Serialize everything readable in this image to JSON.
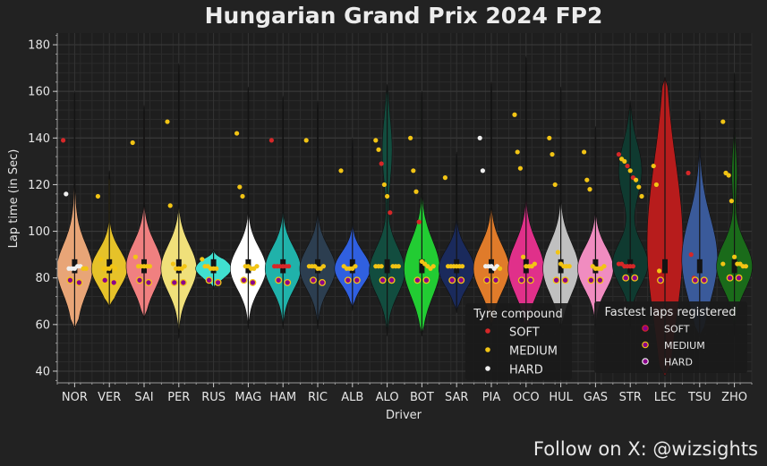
{
  "chart_data": {
    "type": "violin",
    "title": "Hungarian Grand Prix 2024 FP2",
    "xlabel": "Driver",
    "ylabel": "Lap time (in Sec)",
    "ylim": [
      35,
      185
    ],
    "yticks": [
      "40",
      "60",
      "80",
      "100",
      "120",
      "140",
      "160",
      "180"
    ],
    "grid": true,
    "background": "#1e1e1e",
    "compound_colors": {
      "SOFT": "#d62728",
      "MEDIUM": "#f2c414",
      "HARD": "#f0f0f0"
    },
    "fastest_marker_color": "#8b008b",
    "legend_compound": {
      "title": "Tyre compound",
      "placement": "lower-right",
      "items": [
        {
          "label": "SOFT",
          "compound": "SOFT"
        },
        {
          "label": "MEDIUM",
          "compound": "MEDIUM"
        },
        {
          "label": "HARD",
          "compound": "HARD"
        }
      ]
    },
    "legend_fastest": {
      "title": "Fastest laps registered",
      "placement": "lower-right",
      "items": [
        {
          "label": "SOFT",
          "compound": "SOFT"
        },
        {
          "label": "MEDIUM",
          "compound": "MEDIUM"
        },
        {
          "label": "HARD",
          "compound": "HARD"
        }
      ]
    },
    "drivers": [
      {
        "code": "NOR",
        "color": "#e8a577",
        "range": [
          58,
          160
        ],
        "modes": [
          {
            "c": 84,
            "w": 1.0,
            "s": 10
          },
          {
            "c": 80,
            "w": 0.3,
            "s": 20
          }
        ],
        "points": [
          [
            139,
            "SOFT"
          ],
          [
            116,
            "HARD"
          ],
          [
            84,
            "HARD"
          ],
          [
            84,
            "HARD"
          ],
          [
            84,
            "HARD"
          ],
          [
            85,
            "HARD"
          ],
          [
            85,
            "HARD"
          ],
          [
            84,
            "MEDIUM"
          ],
          [
            84,
            "MEDIUM"
          ]
        ],
        "fastest": [
          [
            79,
            "MEDIUM"
          ],
          [
            78,
            "MEDIUM"
          ]
        ]
      },
      {
        "code": "VER",
        "color": "#e6c229",
        "range": [
          67,
          126
        ],
        "modes": [
          {
            "c": 84,
            "w": 0.65,
            "s": 8
          }
        ],
        "points": [
          [
            115,
            "MEDIUM"
          ],
          [
            88,
            "MEDIUM"
          ],
          [
            84,
            "MEDIUM"
          ],
          [
            84,
            "MEDIUM"
          ],
          [
            84,
            "MEDIUM"
          ],
          [
            85,
            "MEDIUM"
          ],
          [
            84,
            "MEDIUM"
          ]
        ],
        "fastest": [
          [
            79,
            "MEDIUM"
          ],
          [
            78,
            "MEDIUM"
          ]
        ]
      },
      {
        "code": "SAI",
        "color": "#f08080",
        "range": [
          62,
          154
        ],
        "modes": [
          {
            "c": 85,
            "w": 0.85,
            "s": 10
          }
        ],
        "points": [
          [
            138,
            "MEDIUM"
          ],
          [
            89,
            "MEDIUM"
          ],
          [
            85,
            "MEDIUM"
          ],
          [
            85,
            "MEDIUM"
          ],
          [
            85,
            "MEDIUM"
          ],
          [
            85,
            "MEDIUM"
          ],
          [
            85,
            "MEDIUM"
          ]
        ],
        "fastest": [
          [
            79,
            "MEDIUM"
          ],
          [
            78,
            "MEDIUM"
          ]
        ]
      },
      {
        "code": "PER",
        "color": "#f0e07a",
        "range": [
          54,
          172
        ],
        "modes": [
          {
            "c": 84,
            "w": 1.0,
            "s": 10
          }
        ],
        "points": [
          [
            147,
            "MEDIUM"
          ],
          [
            111,
            "MEDIUM"
          ],
          [
            86,
            "MEDIUM"
          ],
          [
            84,
            "MEDIUM"
          ],
          [
            84,
            "MEDIUM"
          ],
          [
            84,
            "MEDIUM"
          ],
          [
            85,
            "MEDIUM"
          ]
        ],
        "fastest": [
          [
            78,
            "MEDIUM"
          ],
          [
            78,
            "MEDIUM"
          ]
        ]
      },
      {
        "code": "RUS",
        "color": "#40e0d0",
        "range": [
          75,
          92
        ],
        "modes": [
          {
            "c": 84,
            "w": 0.55,
            "s": 4
          }
        ],
        "points": [
          [
            88,
            "MEDIUM"
          ],
          [
            85,
            "MEDIUM"
          ],
          [
            85,
            "MEDIUM"
          ],
          [
            84,
            "MEDIUM"
          ],
          [
            84,
            "MEDIUM"
          ],
          [
            84,
            "MEDIUM"
          ]
        ],
        "fastest": [
          [
            79,
            "MEDIUM"
          ],
          [
            78,
            "MEDIUM"
          ]
        ]
      },
      {
        "code": "MAG",
        "color": "#ffffff",
        "range": [
          58,
          162
        ],
        "modes": [
          {
            "c": 84,
            "w": 1.0,
            "s": 9
          }
        ],
        "points": [
          [
            142,
            "MEDIUM"
          ],
          [
            119,
            "MEDIUM"
          ],
          [
            115,
            "MEDIUM"
          ],
          [
            85,
            "MEDIUM"
          ],
          [
            85,
            "MEDIUM"
          ],
          [
            84,
            "MEDIUM"
          ],
          [
            84,
            "MEDIUM"
          ],
          [
            85,
            "MEDIUM"
          ]
        ],
        "fastest": [
          [
            79,
            "MEDIUM"
          ],
          [
            78,
            "MEDIUM"
          ]
        ]
      },
      {
        "code": "HAM",
        "color": "#20b2aa",
        "range": [
          58,
          158
        ],
        "modes": [
          {
            "c": 84,
            "w": 0.95,
            "s": 9
          }
        ],
        "points": [
          [
            139,
            "SOFT"
          ],
          [
            85,
            "SOFT"
          ],
          [
            85,
            "SOFT"
          ],
          [
            85,
            "SOFT"
          ],
          [
            85,
            "SOFT"
          ],
          [
            85,
            "SOFT"
          ],
          [
            85,
            "SOFT"
          ]
        ],
        "fastest": [
          [
            79,
            "MEDIUM"
          ],
          [
            78,
            "MEDIUM"
          ]
        ]
      },
      {
        "code": "RIC",
        "color": "#2c3e50",
        "range": [
          58,
          156
        ],
        "modes": [
          {
            "c": 84,
            "w": 0.9,
            "s": 9
          }
        ],
        "points": [
          [
            139,
            "MEDIUM"
          ],
          [
            85,
            "MEDIUM"
          ],
          [
            85,
            "MEDIUM"
          ],
          [
            85,
            "MEDIUM"
          ],
          [
            84,
            "MEDIUM"
          ],
          [
            84,
            "MEDIUM"
          ],
          [
            85,
            "MEDIUM"
          ]
        ],
        "fastest": [
          [
            79,
            "MEDIUM"
          ],
          [
            78,
            "MEDIUM"
          ]
        ]
      },
      {
        "code": "ALB",
        "color": "#3060e0",
        "range": [
          66,
          140
        ],
        "modes": [
          {
            "c": 84,
            "w": 0.9,
            "s": 7
          }
        ],
        "points": [
          [
            126,
            "MEDIUM"
          ],
          [
            85,
            "MEDIUM"
          ],
          [
            84,
            "MEDIUM"
          ],
          [
            84,
            "MEDIUM"
          ],
          [
            84,
            "MEDIUM"
          ],
          [
            85,
            "MEDIUM"
          ]
        ],
        "fastest": [
          [
            79,
            "MEDIUM"
          ],
          [
            79,
            "MEDIUM"
          ]
        ]
      },
      {
        "code": "ALO",
        "color": "#124d3f",
        "range": [
          55,
          163
        ],
        "modes": [
          {
            "c": 83,
            "w": 0.9,
            "s": 10
          },
          {
            "c": 135,
            "w": 0.25,
            "s": 14
          }
        ],
        "points": [
          [
            139,
            "MEDIUM"
          ],
          [
            135,
            "MEDIUM"
          ],
          [
            129,
            "SOFT"
          ],
          [
            120,
            "MEDIUM"
          ],
          [
            115,
            "MEDIUM"
          ],
          [
            108,
            "SOFT"
          ],
          [
            85,
            "MEDIUM"
          ],
          [
            85,
            "MEDIUM"
          ],
          [
            85,
            "MEDIUM"
          ],
          [
            85,
            "MEDIUM"
          ],
          [
            85,
            "MEDIUM"
          ],
          [
            85,
            "MEDIUM"
          ]
        ],
        "fastest": [
          [
            79,
            "MEDIUM"
          ],
          [
            79,
            "MEDIUM"
          ]
        ]
      },
      {
        "code": "BOT",
        "color": "#22cc33",
        "range": [
          55,
          160
        ],
        "modes": [
          {
            "c": 84,
            "w": 1.0,
            "s": 12
          }
        ],
        "points": [
          [
            140,
            "MEDIUM"
          ],
          [
            126,
            "MEDIUM"
          ],
          [
            117,
            "MEDIUM"
          ],
          [
            104,
            "SOFT"
          ],
          [
            87,
            "MEDIUM"
          ],
          [
            86,
            "MEDIUM"
          ],
          [
            85,
            "MEDIUM"
          ],
          [
            84,
            "MEDIUM"
          ],
          [
            85,
            "MEDIUM"
          ]
        ],
        "fastest": [
          [
            79,
            "MEDIUM"
          ],
          [
            79,
            "MEDIUM"
          ]
        ]
      },
      {
        "code": "SAR",
        "color": "#1a2a5c",
        "range": [
          65,
          134
        ],
        "modes": [
          {
            "c": 84,
            "w": 0.85,
            "s": 8
          }
        ],
        "points": [
          [
            123,
            "MEDIUM"
          ],
          [
            85,
            "MEDIUM"
          ],
          [
            85,
            "MEDIUM"
          ],
          [
            85,
            "MEDIUM"
          ],
          [
            85,
            "MEDIUM"
          ],
          [
            85,
            "MEDIUM"
          ],
          [
            85,
            "MEDIUM"
          ]
        ],
        "fastest": [
          [
            79,
            "MEDIUM"
          ],
          [
            79,
            "MEDIUM"
          ]
        ]
      },
      {
        "code": "PIA",
        "color": "#e07b2a",
        "range": [
          58,
          164
        ],
        "modes": [
          {
            "c": 84,
            "w": 0.95,
            "s": 10
          }
        ],
        "points": [
          [
            140,
            "HARD"
          ],
          [
            126,
            "HARD"
          ],
          [
            85,
            "HARD"
          ],
          [
            85,
            "HARD"
          ],
          [
            85,
            "HARD"
          ],
          [
            84,
            "HARD"
          ],
          [
            85,
            "HARD"
          ],
          [
            84,
            "MEDIUM"
          ]
        ],
        "fastest": [
          [
            79,
            "MEDIUM"
          ],
          [
            79,
            "MEDIUM"
          ]
        ]
      },
      {
        "code": "OCO",
        "color": "#e0308a",
        "range": [
          58,
          175
        ],
        "modes": [
          {
            "c": 84,
            "w": 0.95,
            "s": 11
          }
        ],
        "points": [
          [
            150,
            "MEDIUM"
          ],
          [
            134,
            "MEDIUM"
          ],
          [
            127,
            "MEDIUM"
          ],
          [
            89,
            "MEDIUM"
          ],
          [
            85,
            "MEDIUM"
          ],
          [
            85,
            "MEDIUM"
          ],
          [
            85,
            "MEDIUM"
          ],
          [
            86,
            "MEDIUM"
          ]
        ],
        "fastest": [
          [
            79,
            "MEDIUM"
          ],
          [
            79,
            "MEDIUM"
          ]
        ]
      },
      {
        "code": "HUL",
        "color": "#c0c0c0",
        "range": [
          58,
          162
        ],
        "modes": [
          {
            "c": 84,
            "w": 0.95,
            "s": 11
          }
        ],
        "points": [
          [
            140,
            "MEDIUM"
          ],
          [
            133,
            "MEDIUM"
          ],
          [
            120,
            "MEDIUM"
          ],
          [
            91,
            "MEDIUM"
          ],
          [
            86,
            "MEDIUM"
          ],
          [
            85,
            "MEDIUM"
          ],
          [
            85,
            "MEDIUM"
          ],
          [
            85,
            "MEDIUM"
          ]
        ],
        "fastest": [
          [
            79,
            "MEDIUM"
          ],
          [
            79,
            "MEDIUM"
          ]
        ]
      },
      {
        "code": "GAS",
        "color": "#f08cc0",
        "range": [
          58,
          145
        ],
        "modes": [
          {
            "c": 84,
            "w": 1.0,
            "s": 9
          }
        ],
        "points": [
          [
            134,
            "MEDIUM"
          ],
          [
            122,
            "MEDIUM"
          ],
          [
            118,
            "MEDIUM"
          ],
          [
            85,
            "MEDIUM"
          ],
          [
            84,
            "MEDIUM"
          ],
          [
            84,
            "MEDIUM"
          ],
          [
            84,
            "MEDIUM"
          ],
          [
            85,
            "MEDIUM"
          ]
        ],
        "fastest": [
          [
            79,
            "MEDIUM"
          ],
          [
            79,
            "MEDIUM"
          ]
        ]
      },
      {
        "code": "STR",
        "color": "#0f3a30",
        "range": [
          58,
          156
        ],
        "modes": [
          {
            "c": 86,
            "w": 0.85,
            "s": 9
          },
          {
            "c": 126,
            "w": 0.55,
            "s": 12
          }
        ],
        "points": [
          [
            133,
            "SOFT"
          ],
          [
            131,
            "MEDIUM"
          ],
          [
            130,
            "MEDIUM"
          ],
          [
            128,
            "SOFT"
          ],
          [
            126,
            "MEDIUM"
          ],
          [
            123,
            "SOFT"
          ],
          [
            122,
            "MEDIUM"
          ],
          [
            119,
            "MEDIUM"
          ],
          [
            115,
            "MEDIUM"
          ],
          [
            86,
            "SOFT"
          ],
          [
            86,
            "SOFT"
          ],
          [
            85,
            "SOFT"
          ],
          [
            85,
            "SOFT"
          ],
          [
            85,
            "SOFT"
          ],
          [
            85,
            "SOFT"
          ]
        ],
        "fastest": [
          [
            80,
            "MEDIUM"
          ],
          [
            80,
            "MEDIUM"
          ]
        ]
      },
      {
        "code": "LEC",
        "color": "#b71c1c",
        "range": [
          38,
          166
        ],
        "modes": [
          {
            "c": 95,
            "w": 1.0,
            "s": 35
          }
        ],
        "points": [
          [
            128,
            "MEDIUM"
          ],
          [
            120,
            "MEDIUM"
          ],
          [
            83,
            "MEDIUM"
          ]
        ],
        "fastest": [
          [
            79,
            "MEDIUM"
          ]
        ]
      },
      {
        "code": "TSU",
        "color": "#3a5a9a",
        "range": [
          55,
          152
        ],
        "modes": [
          {
            "c": 88,
            "w": 0.95,
            "s": 18
          }
        ],
        "points": [
          [
            125,
            "SOFT"
          ],
          [
            90,
            "SOFT"
          ],
          [
            80,
            "SOFT"
          ]
        ],
        "fastest": [
          [
            79,
            "MEDIUM"
          ],
          [
            79,
            "MEDIUM"
          ]
        ]
      },
      {
        "code": "ZHO",
        "color": "#1a6b1a",
        "range": [
          55,
          168
        ],
        "modes": [
          {
            "c": 85,
            "w": 1.0,
            "s": 10
          },
          {
            "c": 125,
            "w": 0.15,
            "s": 10
          }
        ],
        "points": [
          [
            147,
            "MEDIUM"
          ],
          [
            125,
            "MEDIUM"
          ],
          [
            124,
            "MEDIUM"
          ],
          [
            113,
            "MEDIUM"
          ],
          [
            89,
            "MEDIUM"
          ],
          [
            86,
            "MEDIUM"
          ],
          [
            86,
            "MEDIUM"
          ],
          [
            85,
            "MEDIUM"
          ],
          [
            85,
            "MEDIUM"
          ],
          [
            86,
            "MEDIUM"
          ]
        ],
        "fastest": [
          [
            80,
            "MEDIUM"
          ],
          [
            80,
            "MEDIUM"
          ]
        ]
      }
    ]
  },
  "footer": {
    "credit": "Follow on X: @wizsights"
  }
}
